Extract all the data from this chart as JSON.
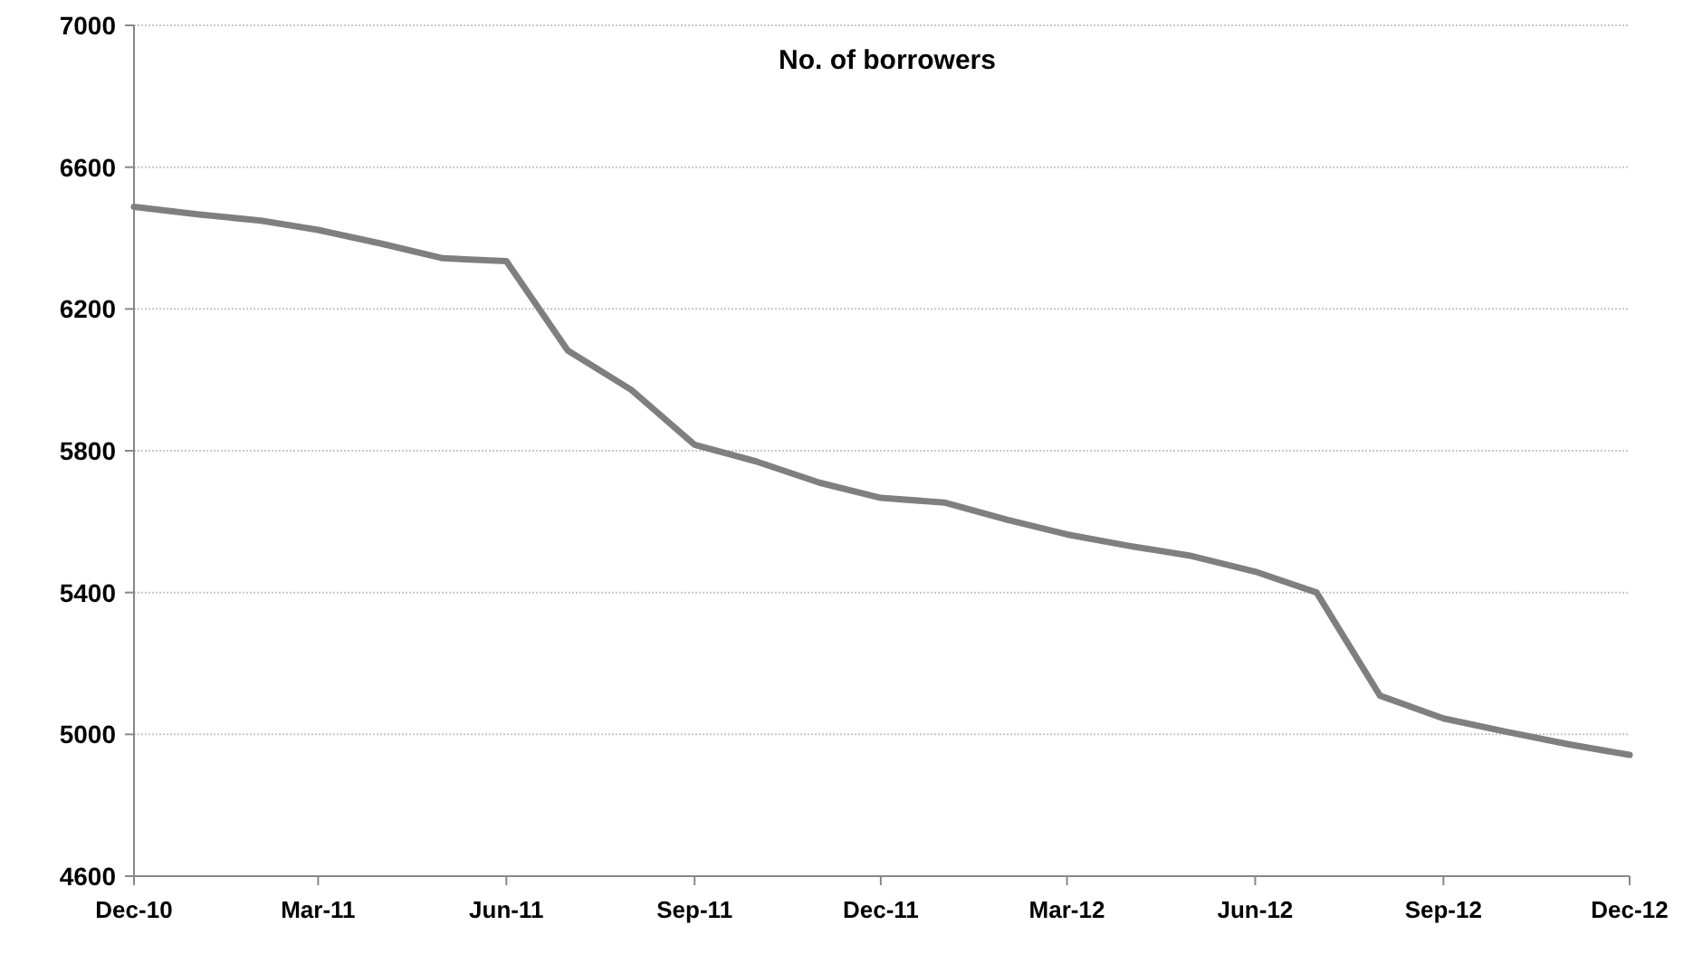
{
  "chart_data": {
    "type": "line",
    "title": "No. of borrowers",
    "x": [
      "2010-12",
      "2011-01",
      "2011-02",
      "2011-03",
      "2011-04",
      "2011-05",
      "2011-06",
      "2011-07",
      "2011-08",
      "2011-09",
      "2011-10",
      "2011-11",
      "2011-12",
      "2012-01",
      "2012-02",
      "2012-03",
      "2012-04",
      "2012-05",
      "2012-06",
      "2012-07",
      "2012-08",
      "2012-09",
      "2012-10",
      "2012-11",
      "2012-12"
    ],
    "series": [
      {
        "color": "#7f7f7f",
        "values": [
          6488,
          6467,
          6449,
          6423,
          6384,
          6343,
          6335,
          6083,
          5972,
          5817,
          5770,
          5710,
          5667,
          5654,
          5605,
          5564,
          5531,
          5503,
          5459,
          5400,
          5109,
          5045,
          5008,
          4972,
          4942
        ]
      }
    ],
    "xlim": [
      "2010-12",
      "2012-12"
    ],
    "xticks": [
      {
        "value": "2010-12",
        "label": "Dec-10"
      },
      {
        "value": "2011-03",
        "label": "Mar-11"
      },
      {
        "value": "2011-06",
        "label": "Jun-11"
      },
      {
        "value": "2011-09",
        "label": "Sep-11"
      },
      {
        "value": "2011-12",
        "label": "Dec-11"
      },
      {
        "value": "2012-03",
        "label": "Mar-12"
      },
      {
        "value": "2012-06",
        "label": "Jun-12"
      },
      {
        "value": "2012-09",
        "label": "Sep-12"
      },
      {
        "value": "2012-12",
        "label": "Dec-12"
      }
    ],
    "ylim": [
      4600,
      7000
    ],
    "yticks": [
      4600,
      5000,
      5400,
      5800,
      6200,
      6600,
      7000
    ],
    "grid": "y",
    "marker": "none",
    "line_style": "solid"
  }
}
